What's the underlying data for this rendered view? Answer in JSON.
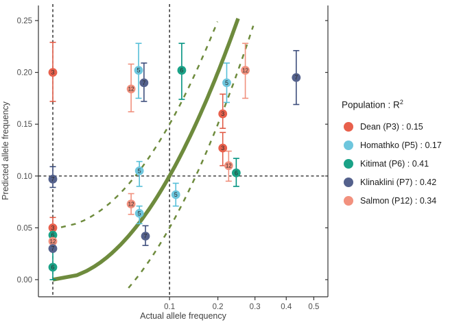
{
  "chart_data": {
    "type": "scatter",
    "title": "",
    "xlabel": "Actual allele frequency",
    "ylabel": "Predicted allele frequency",
    "x_scale": "sqrt",
    "y_scale": "linear",
    "xlim": [
      0,
      0.556
    ],
    "ylim": [
      -0.017,
      0.265
    ],
    "grid": false,
    "x_ticks": [
      {
        "value": 0.1,
        "label": "0.1"
      },
      {
        "value": 0.2,
        "label": "0.2"
      },
      {
        "value": 0.3,
        "label": "0.3"
      },
      {
        "value": 0.4,
        "label": "0.4"
      },
      {
        "value": 0.5,
        "label": "0.5"
      }
    ],
    "y_ticks": [
      {
        "value": 0.0,
        "label": "0.00"
      },
      {
        "value": 0.05,
        "label": "0.05"
      },
      {
        "value": 0.1,
        "label": "0.10"
      },
      {
        "value": 0.15,
        "label": "0.15"
      },
      {
        "value": 0.2,
        "label": "0.20"
      },
      {
        "value": 0.25,
        "label": "0.25"
      }
    ],
    "reference_lines": {
      "vertical_x": [
        0.0,
        0.1
      ],
      "horizontal_y": [
        0.1
      ],
      "color": "#000000",
      "style": "dashed"
    },
    "fit_line": {
      "description": "identity line y = x on sqrt-x scale",
      "color": "#6E8B3D",
      "x_range": [
        0.0,
        0.252
      ],
      "band_offset": 0.05,
      "band_upper_x_range": [
        0.0005,
        0.199
      ],
      "band_lower_x_range": [
        0.042,
        0.295
      ],
      "band_style": "dashed"
    },
    "legend": {
      "title_base": "Population : R",
      "title_sup": "2",
      "position": "right"
    },
    "draw_order": [
      0,
      1,
      2,
      4,
      3
    ],
    "series": [
      {
        "name": "Dean (P3)",
        "r2": "0.15",
        "legend_label": "Dean (P3) : 0.15",
        "point_label": "3",
        "color": "#E8604C",
        "bar_color": "#E05A45",
        "points": [
          {
            "x": 0.0,
            "y": 0.2,
            "lo": 0.172,
            "hi": 0.229
          },
          {
            "x": 0.0,
            "y": 0.05,
            "lo": 0.042,
            "hi": 0.06
          },
          {
            "x": 0.212,
            "y": 0.16,
            "lo": 0.146,
            "hi": 0.179
          },
          {
            "x": 0.212,
            "y": 0.127,
            "lo": 0.11,
            "hi": 0.142
          }
        ]
      },
      {
        "name": "Homathko (P5)",
        "r2": "0.17",
        "legend_label": "Homathko (P5) : 0.17",
        "point_label": "5",
        "color": "#6EC6DD",
        "bar_color": "#56BFD8",
        "points": [
          {
            "x": 0.054,
            "y": 0.202,
            "lo": 0.175,
            "hi": 0.228
          },
          {
            "x": 0.055,
            "y": 0.105,
            "lo": 0.09,
            "hi": 0.114
          },
          {
            "x": 0.055,
            "y": 0.064,
            "lo": 0.054,
            "hi": 0.071
          },
          {
            "x": 0.111,
            "y": 0.082,
            "lo": 0.071,
            "hi": 0.093
          },
          {
            "x": 0.222,
            "y": 0.19,
            "lo": 0.171,
            "hi": 0.209
          }
        ]
      },
      {
        "name": "Kitimat (P6)",
        "r2": "0.41",
        "legend_label": "Kitimat (P6) : 0.41",
        "point_label": "6",
        "color": "#1AA287",
        "bar_color": "#00927F",
        "points": [
          {
            "x": 0.0,
            "y": 0.043,
            "lo": 0.043,
            "hi": 0.043
          },
          {
            "x": 0.0,
            "y": 0.012,
            "lo": 0.0,
            "hi": 0.035
          },
          {
            "x": 0.122,
            "y": 0.202,
            "lo": 0.174,
            "hi": 0.228
          },
          {
            "x": 0.247,
            "y": 0.103,
            "lo": 0.09,
            "hi": 0.117
          }
        ]
      },
      {
        "name": "Klinaklini (P7)",
        "r2": "0.42",
        "legend_label": "Klinaklini (P7) : 0.42",
        "point_label": "7",
        "color": "#54618C",
        "bar_color": "#3D4E7C",
        "points": [
          {
            "x": 0.0,
            "y": 0.097,
            "lo": 0.089,
            "hi": 0.109
          },
          {
            "x": 0.0,
            "y": 0.03,
            "lo": 0.03,
            "hi": 0.03
          },
          {
            "x": 0.061,
            "y": 0.19,
            "lo": 0.172,
            "hi": 0.209
          },
          {
            "x": 0.063,
            "y": 0.042,
            "lo": 0.033,
            "hi": 0.052
          },
          {
            "x": 0.435,
            "y": 0.195,
            "lo": 0.169,
            "hi": 0.221
          }
        ]
      },
      {
        "name": "Salmon (P12)",
        "r2": "0.34",
        "legend_label": "Salmon (P12) : 0.34",
        "point_label": "12",
        "color": "#F2917E",
        "bar_color": "#F0907D",
        "points": [
          {
            "x": 0.0,
            "y": 0.037,
            "lo": 0.037,
            "hi": 0.037
          },
          {
            "x": 0.045,
            "y": 0.184,
            "lo": 0.162,
            "hi": 0.208
          },
          {
            "x": 0.045,
            "y": 0.073,
            "lo": 0.063,
            "hi": 0.083
          },
          {
            "x": 0.227,
            "y": 0.11,
            "lo": 0.095,
            "hi": 0.124
          },
          {
            "x": 0.272,
            "y": 0.202,
            "lo": 0.175,
            "hi": 0.228
          }
        ]
      }
    ]
  }
}
